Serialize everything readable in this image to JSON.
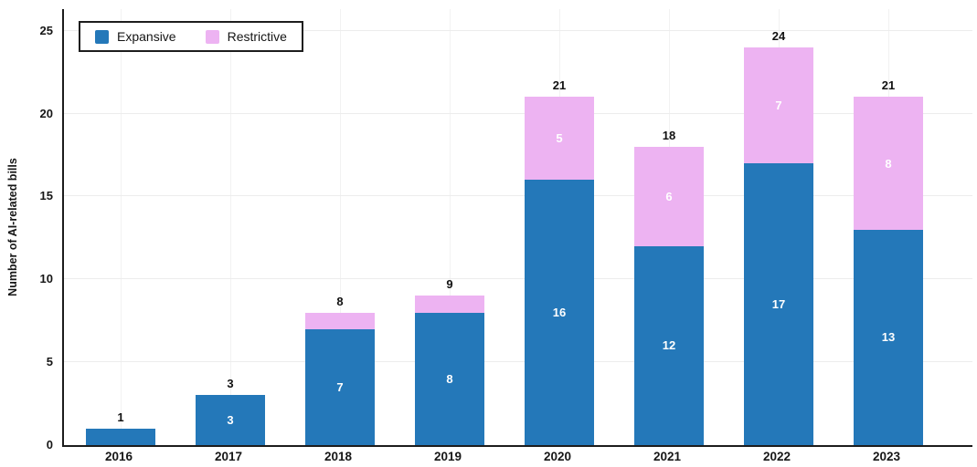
{
  "chart_data": {
    "type": "bar",
    "stacked": true,
    "title": "",
    "categories": [
      "2016",
      "2017",
      "2018",
      "2019",
      "2020",
      "2021",
      "2022",
      "2023"
    ],
    "series": [
      {
        "name": "Expansive",
        "color": "#2478b9",
        "values": [
          1,
          3,
          7,
          8,
          16,
          12,
          17,
          13
        ],
        "labels": [
          "",
          "3",
          "7",
          "8",
          "16",
          "12",
          "17",
          "13"
        ]
      },
      {
        "name": "Restrictive",
        "color": "#edb3f2",
        "values": [
          0,
          0,
          1,
          1,
          5,
          6,
          7,
          8
        ],
        "labels": [
          "",
          "",
          "",
          "",
          "5",
          "6",
          "7",
          "8"
        ]
      }
    ],
    "totals": [
      1,
      3,
      8,
      9,
      21,
      18,
      24,
      21
    ],
    "xlabel": "",
    "ylabel": "Number of AI-related bills",
    "yticks": [
      0,
      5,
      10,
      15,
      20,
      25
    ],
    "ylim": [
      0,
      26.3
    ],
    "grid": true,
    "legend_position": "top-left",
    "colors": {
      "axis": "#1c1c1c",
      "gridline": "#ececec",
      "bar_label_inside": "#ffffff",
      "bar_label_total": "#111111",
      "background": "#ffffff"
    }
  }
}
